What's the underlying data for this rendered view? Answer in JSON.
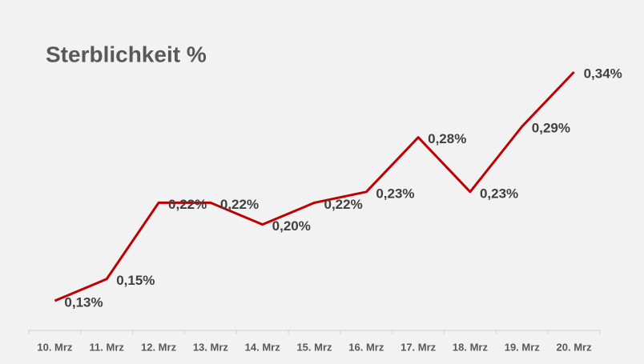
{
  "chart_data": {
    "type": "line",
    "title": "Sterblichkeit %",
    "categories": [
      "10. Mrz",
      "11. Mrz",
      "12. Mrz",
      "13. Mrz",
      "14. Mrz",
      "15. Mrz",
      "16. Mrz",
      "17. Mrz",
      "18. Mrz",
      "19. Mrz",
      "20. Mrz"
    ],
    "series": [
      {
        "color": "#c00000",
        "values": [
          0.13,
          0.15,
          0.22,
          0.22,
          0.2,
          0.22,
          0.23,
          0.28,
          0.23,
          0.29,
          0.34
        ],
        "value_labels": [
          "0,13%",
          "0,15%",
          "0,22%",
          "0,22%",
          "0,20%",
          "0,22%",
          "0,23%",
          "0,28%",
          "0,23%",
          "0,29%",
          "0,34%"
        ]
      }
    ]
  }
}
